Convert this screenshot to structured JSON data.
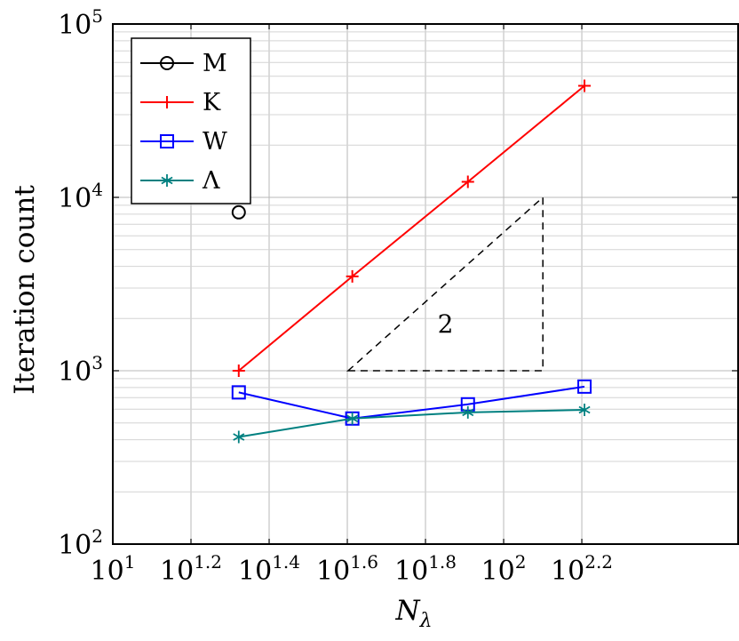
{
  "chart_data": {
    "type": "line",
    "xlabel_main": "N",
    "xlabel_sub": "λ",
    "ylabel": "Iteration count",
    "x_scale": "log",
    "y_scale": "log",
    "xlim": [
      10,
      398
    ],
    "ylim": [
      100,
      100000
    ],
    "grid": true,
    "legend_position": "top-left",
    "x_ticks": [
      {
        "base": "10",
        "exp": "1"
      },
      {
        "base": "10",
        "exp": "1.2"
      },
      {
        "base": "10",
        "exp": "1.4"
      },
      {
        "base": "10",
        "exp": "1.6"
      },
      {
        "base": "10",
        "exp": "1.8"
      },
      {
        "base": "10",
        "exp": "2"
      },
      {
        "base": "10",
        "exp": "2.2"
      }
    ],
    "y_ticks": [
      {
        "base": "10",
        "exp": "2"
      },
      {
        "base": "10",
        "exp": "3"
      },
      {
        "base": "10",
        "exp": "4"
      },
      {
        "base": "10",
        "exp": "5"
      }
    ],
    "series": [
      {
        "name": "M",
        "color": "#000000",
        "marker": "circle",
        "x": [
          21
        ],
        "y": [
          8200
        ]
      },
      {
        "name": "K",
        "color": "#ff0000",
        "marker": "plus",
        "x": [
          21,
          41,
          81,
          161
        ],
        "y": [
          1000,
          3500,
          12300,
          44000
        ]
      },
      {
        "name": "W",
        "color": "#0000ff",
        "marker": "square",
        "x": [
          21,
          41,
          81,
          161
        ],
        "y": [
          750,
          530,
          640,
          810
        ]
      },
      {
        "name": "Λ",
        "color": "#008080",
        "marker": "asterisk",
        "x": [
          21,
          41,
          81,
          161
        ],
        "y": [
          415,
          530,
          575,
          595
        ]
      }
    ],
    "annotation": {
      "label": "2",
      "triangle_x": [
        40,
        126
      ],
      "triangle_y": [
        1000,
        10000
      ]
    }
  }
}
